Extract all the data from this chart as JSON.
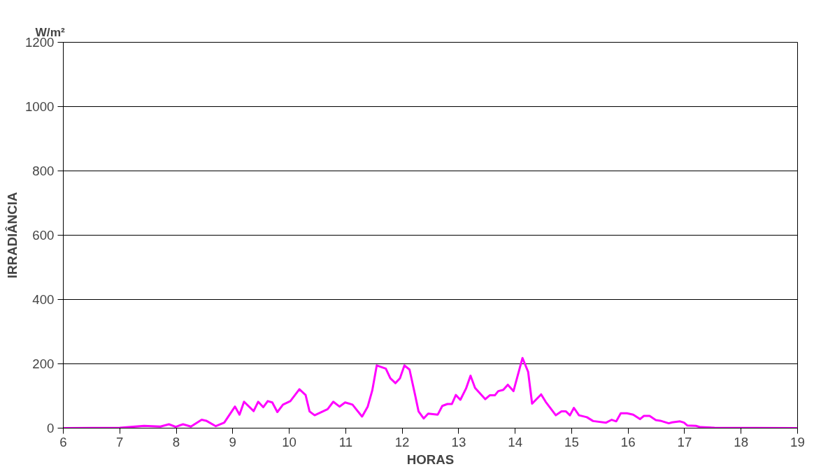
{
  "chart_data": {
    "type": "line",
    "xlabel": "HORAS",
    "ylabel": "IRRADIÂNCIA",
    "annotations": [
      "W/m²"
    ],
    "xlim": [
      6,
      19
    ],
    "ylim": [
      0,
      1200
    ],
    "xticks": [
      6,
      7,
      8,
      9,
      10,
      11,
      12,
      13,
      14,
      15,
      16,
      17,
      18,
      19
    ],
    "yticks": [
      0,
      200,
      400,
      600,
      800,
      1000,
      1200
    ],
    "grid": "y",
    "marker": "none",
    "line_style": "solid",
    "series": [
      {
        "color": "#ff00ff",
        "x": [
          6.0,
          7.0,
          7.43,
          7.72,
          7.87,
          7.99,
          8.12,
          8.26,
          8.45,
          8.53,
          8.7,
          8.85,
          9.04,
          9.12,
          9.2,
          9.37,
          9.45,
          9.54,
          9.62,
          9.7,
          9.79,
          9.89,
          10.02,
          10.18,
          10.29,
          10.36,
          10.45,
          10.68,
          10.78,
          10.89,
          10.99,
          11.12,
          11.29,
          11.39,
          11.47,
          11.55,
          11.71,
          11.79,
          11.88,
          11.96,
          12.04,
          12.13,
          12.23,
          12.29,
          12.38,
          12.46,
          12.63,
          12.71,
          12.8,
          12.88,
          12.95,
          13.03,
          13.13,
          13.21,
          13.29,
          13.47,
          13.55,
          13.64,
          13.7,
          13.79,
          13.87,
          13.97,
          14.13,
          14.23,
          14.3,
          14.46,
          14.54,
          14.72,
          14.82,
          14.9,
          14.97,
          15.04,
          15.13,
          15.27,
          15.38,
          15.61,
          15.71,
          15.79,
          15.87,
          15.98,
          16.09,
          16.21,
          16.28,
          16.38,
          16.49,
          16.57,
          16.72,
          16.78,
          16.92,
          16.99,
          17.05,
          17.2,
          17.28,
          17.53,
          19.0
        ],
        "values": [
          0,
          1,
          7,
          5,
          12,
          4,
          12,
          5,
          26,
          23,
          6,
          17,
          67,
          42,
          82,
          53,
          82,
          65,
          84,
          80,
          50,
          73,
          84,
          121,
          103,
          52,
          40,
          59,
          82,
          67,
          80,
          73,
          36,
          67,
          117,
          195,
          185,
          155,
          140,
          155,
          195,
          182,
          102,
          52,
          30,
          45,
          42,
          69,
          75,
          75,
          103,
          88,
          123,
          163,
          125,
          90,
          102,
          102,
          115,
          119,
          135,
          115,
          218,
          175,
          76,
          105,
          82,
          40,
          52,
          52,
          40,
          63,
          40,
          34,
          22,
          17,
          26,
          21,
          46,
          46,
          42,
          28,
          38,
          38,
          25,
          23,
          15,
          18,
          21,
          17,
          8,
          7,
          3,
          1,
          0
        ]
      }
    ]
  }
}
